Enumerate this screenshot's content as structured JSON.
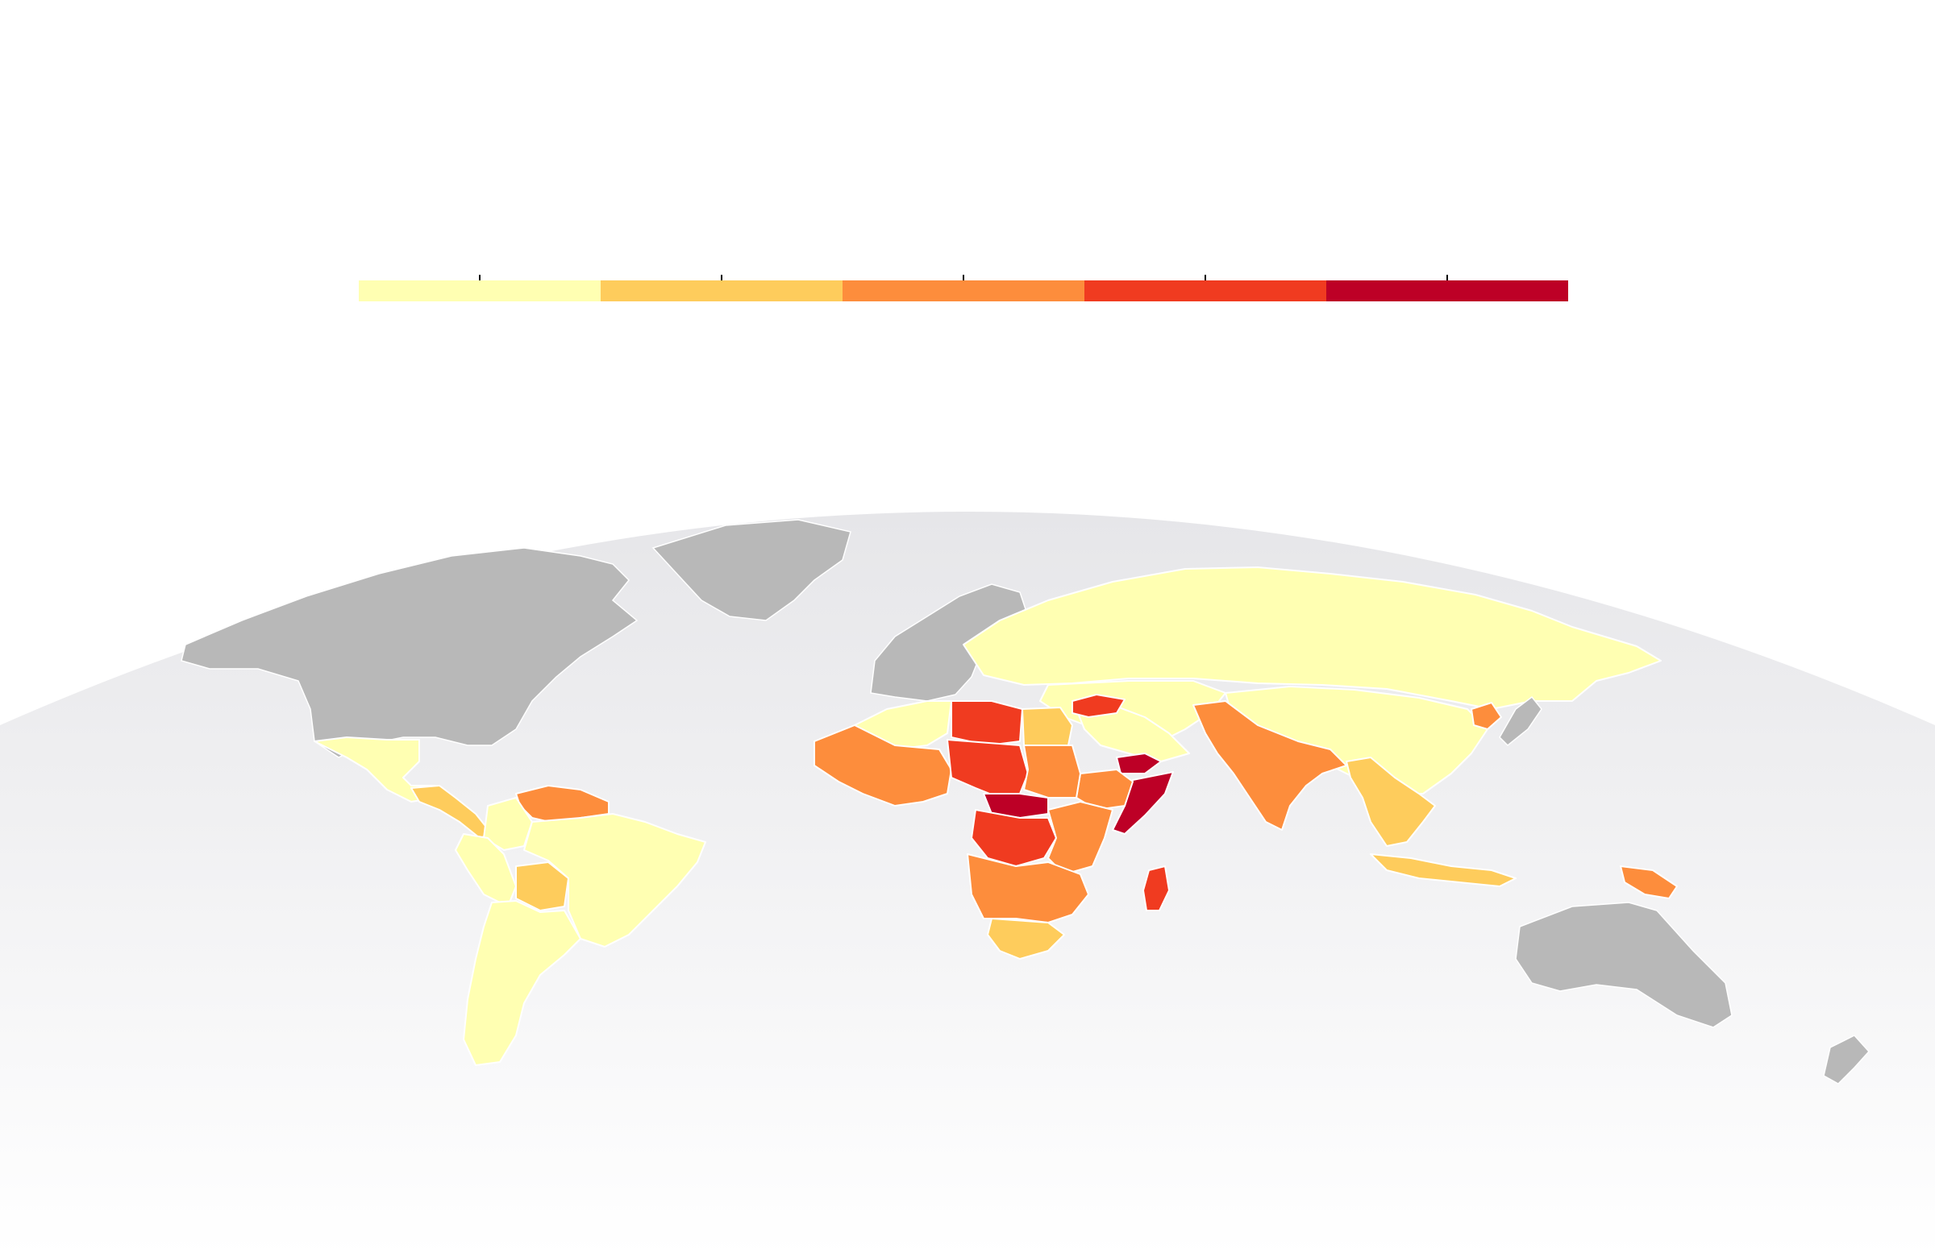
{
  "map": {
    "title": "",
    "legend": {
      "classes": [
        {
          "color": "#ffffb2"
        },
        {
          "color": "#fecc5c"
        },
        {
          "color": "#fd8d3c"
        },
        {
          "color": "#f03b20"
        },
        {
          "color": "#bd0026"
        }
      ],
      "tick_labels": [
        "",
        "",
        "",
        "",
        ""
      ]
    },
    "colors": {
      "no_data": "#b8b8b8",
      "globe_top": "#e6e6e9",
      "globe_bottom": "#ffffff",
      "background": "#ffffff",
      "border": "#ffffff"
    },
    "regions": [
      {
        "id": "north-america",
        "class": "no-data"
      },
      {
        "id": "greenland",
        "class": "no-data"
      },
      {
        "id": "europe",
        "class": "no-data"
      },
      {
        "id": "australia",
        "class": "no-data"
      },
      {
        "id": "new-zealand",
        "class": "no-data"
      },
      {
        "id": "russia",
        "class": 0
      },
      {
        "id": "central-asia",
        "class": 0
      },
      {
        "id": "china",
        "class": 0
      },
      {
        "id": "mexico",
        "class": 0
      },
      {
        "id": "central-america",
        "class": 1
      },
      {
        "id": "venezuela",
        "class": 2
      },
      {
        "id": "colombia",
        "class": 0
      },
      {
        "id": "peru",
        "class": 0
      },
      {
        "id": "bolivia",
        "class": 1
      },
      {
        "id": "brazil",
        "class": 0
      },
      {
        "id": "southern-cone",
        "class": 0
      },
      {
        "id": "north-africa",
        "class": 0
      },
      {
        "id": "libya",
        "class": 3
      },
      {
        "id": "egypt",
        "class": 1
      },
      {
        "id": "middle-east",
        "class": 0
      },
      {
        "id": "syria",
        "class": 3
      },
      {
        "id": "yemen",
        "class": 4
      },
      {
        "id": "somalia",
        "class": 4
      },
      {
        "id": "ethiopia",
        "class": 2
      },
      {
        "id": "west-africa",
        "class": 2
      },
      {
        "id": "niger-chad",
        "class": 3
      },
      {
        "id": "central-african-republic",
        "class": 4
      },
      {
        "id": "sudan",
        "class": 2
      },
      {
        "id": "dr-congo",
        "class": 3
      },
      {
        "id": "east-africa",
        "class": 2
      },
      {
        "id": "southern-africa",
        "class": 2
      },
      {
        "id": "south-africa",
        "class": 1
      },
      {
        "id": "madagascar",
        "class": 3
      },
      {
        "id": "south-asia",
        "class": 2
      },
      {
        "id": "southeast-asia",
        "class": 1
      },
      {
        "id": "indonesia",
        "class": 1
      },
      {
        "id": "papua-new-guinea",
        "class": 2
      },
      {
        "id": "north-korea",
        "class": 2
      },
      {
        "id": "japan",
        "class": "no-data"
      }
    ]
  }
}
